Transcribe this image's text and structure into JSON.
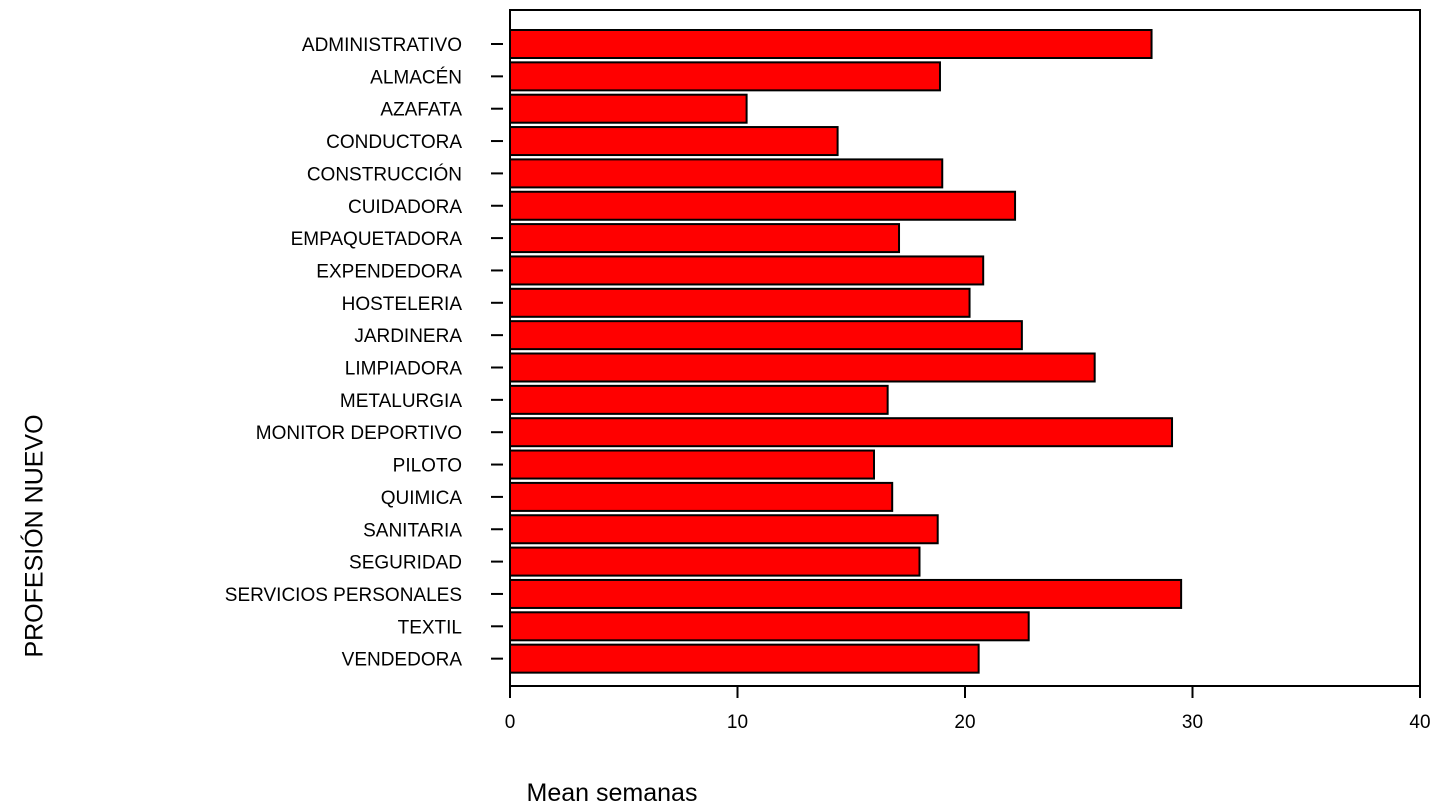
{
  "chart_data": {
    "type": "bar",
    "orientation": "horizontal",
    "categories": [
      "ADMINISTRATIVO",
      "ALMACÉN",
      "AZAFATA",
      "CONDUCTORA",
      "CONSTRUCCIÓN",
      "CUIDADORA",
      "EMPAQUETADORA",
      "EXPENDEDORA",
      "HOSTELERIA",
      "JARDINERA",
      "LIMPIADORA",
      "METALURGIA",
      "MONITOR DEPORTIVO",
      "PILOTO",
      "QUIMICA",
      "SANITARIA",
      "SEGURIDAD",
      "SERVICIOS PERSONALES",
      "TEXTIL",
      "VENDEDORA"
    ],
    "values": [
      28.2,
      18.9,
      10.4,
      14.4,
      19.0,
      22.2,
      17.1,
      20.8,
      20.2,
      22.5,
      25.7,
      16.6,
      29.1,
      16.0,
      16.8,
      18.8,
      18.0,
      29.5,
      22.8,
      20.6
    ],
    "xlabel": "Mean semanas",
    "ylabel": "PROFESIÓN NUEVO",
    "xlim": [
      0,
      40
    ],
    "xticks": [
      0,
      10,
      20,
      30,
      40
    ],
    "xtick_labels": [
      "0",
      "10",
      "20",
      "30",
      "40"
    ],
    "grid": false,
    "colors": {
      "bar_fill": "#ff0000",
      "bar_stroke": "#000000",
      "axis": "#000000"
    }
  }
}
